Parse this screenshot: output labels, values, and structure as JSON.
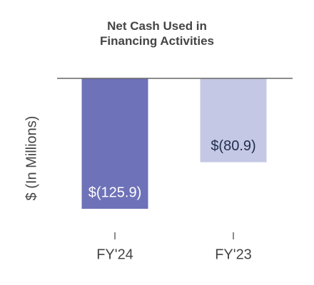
{
  "chart_data": {
    "type": "bar",
    "title": "Net Cash Used in Financing Activities",
    "y_label": "$ (In Millions)",
    "categories": [
      "FY'24",
      "FY'23"
    ],
    "values": [
      -125.9,
      -80.9
    ],
    "value_labels": [
      "$(125.9)",
      "$(80.9)"
    ],
    "colors": [
      "#6e72b8",
      "#c5c8e4"
    ],
    "value_label_colors": [
      "#ffffff",
      "#1f2d4e"
    ],
    "ylim": [
      -140,
      0
    ],
    "grid": false
  }
}
